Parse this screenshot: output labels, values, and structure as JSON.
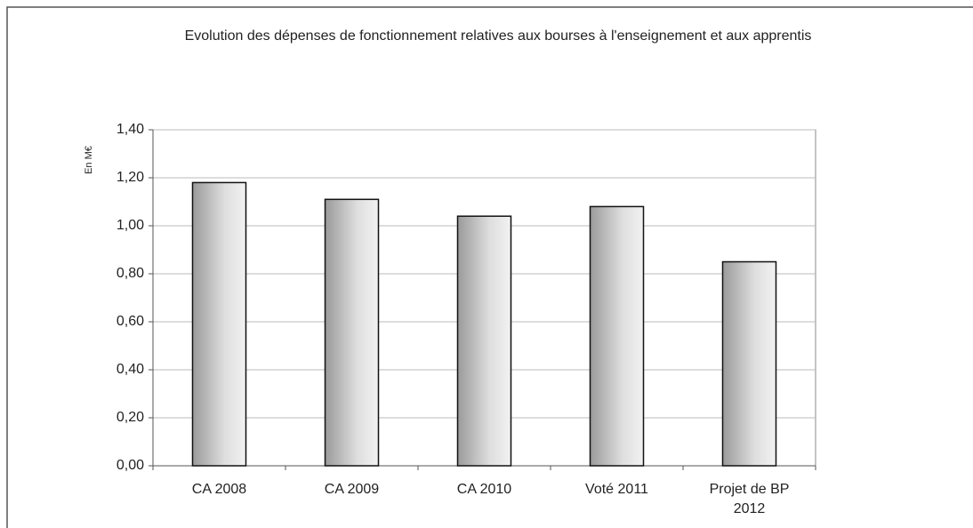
{
  "chart_data": {
    "type": "bar",
    "title": "Evolution des dépenses de fonctionnement relatives aux bourses à l'enseignement et aux apprentis",
    "ylabel": "En M€",
    "categories": [
      "CA 2008",
      "CA 2009",
      "CA 2010",
      "Voté 2011",
      "Projet de BP 2012"
    ],
    "values": [
      1.18,
      1.11,
      1.04,
      1.08,
      0.85
    ],
    "color": "#b8b8b8",
    "ylim": [
      0,
      1.4
    ],
    "yticks": [
      {
        "value": 0,
        "label": "0,00"
      },
      {
        "value": 0.2,
        "label": "0,20"
      },
      {
        "value": 0.4,
        "label": "0,40"
      },
      {
        "value": 0.6,
        "label": "0,60"
      },
      {
        "value": 0.8,
        "label": "0,80"
      },
      {
        "value": 1,
        "label": "1,00"
      },
      {
        "value": 1.2,
        "label": "1,20"
      },
      {
        "value": 1.4,
        "label": "1,40"
      }
    ],
    "grid": true
  }
}
